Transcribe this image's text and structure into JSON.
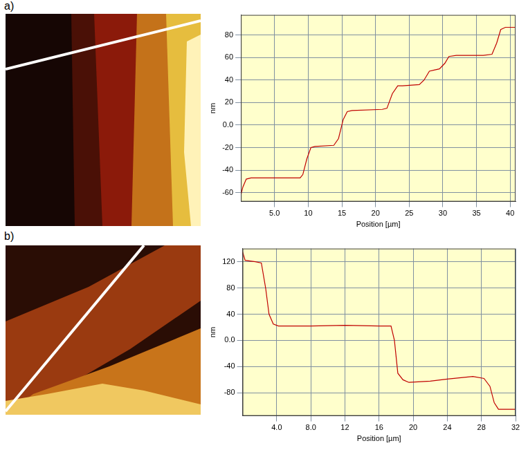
{
  "chart_data": [
    {
      "type": "line",
      "panel": "a)",
      "x_label": "Position [µm]",
      "y_label": "nm",
      "x": [
        0,
        0.3,
        0.8,
        1.5,
        5,
        8.8,
        9.2,
        9.8,
        10.4,
        11,
        13.8,
        14.5,
        15.2,
        15.8,
        16.5,
        21,
        21.7,
        22.5,
        23.3,
        24,
        26.5,
        27.2,
        28,
        28.7,
        29.5,
        30.3,
        30.9,
        32,
        36,
        37.3,
        38,
        38.6,
        39.3,
        40.8
      ],
      "values": [
        -62,
        -55,
        -48,
        -47,
        -47,
        -47,
        -44,
        -30,
        -20,
        -19,
        -18,
        -12,
        5,
        12,
        13,
        14,
        15,
        28,
        35,
        35,
        36,
        40,
        48,
        49,
        50,
        55,
        61,
        62,
        62,
        63,
        73,
        85,
        87,
        87
      ],
      "color": "#c00000",
      "xlim": [
        0,
        40.8
      ],
      "xticks": [
        {
          "value": 5,
          "label": "5.0"
        },
        10,
        15,
        20,
        25,
        30,
        35,
        40
      ],
      "ylim": [
        -68,
        98
      ],
      "yticks": [
        -60,
        -40,
        -20,
        {
          "value": 0,
          "label": "0.0"
        },
        20,
        40,
        60,
        80
      ],
      "grid": true
    },
    {
      "type": "line",
      "panel": "b)",
      "x_label": "Position [µm]",
      "y_label": "nm",
      "x": [
        0,
        0.3,
        1.5,
        2.2,
        2.7,
        3.1,
        3.6,
        4.2,
        8,
        12,
        16,
        17.4,
        17.8,
        18.2,
        18.8,
        19.5,
        22,
        24,
        27,
        28.3,
        29,
        29.5,
        30,
        32
      ],
      "values": [
        135,
        122,
        120,
        118,
        80,
        40,
        25,
        22,
        22,
        23,
        22,
        22,
        0,
        -50,
        -60,
        -64,
        -62,
        -59,
        -55,
        -58,
        -70,
        -95,
        -105,
        -105
      ],
      "color": "#c00000",
      "xlim": [
        0,
        32
      ],
      "xticks": [
        {
          "value": 4,
          "label": "4.0"
        },
        {
          "value": 8,
          "label": "8.0"
        },
        12,
        16,
        20,
        24,
        28,
        32
      ],
      "ylim": [
        -115,
        140
      ],
      "yticks": [
        -80,
        -40,
        {
          "value": 0,
          "label": "0.0"
        },
        40,
        80,
        120
      ],
      "grid": true
    }
  ]
}
